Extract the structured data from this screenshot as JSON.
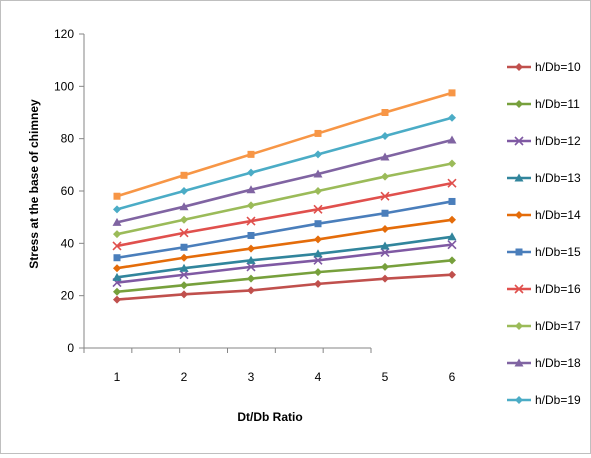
{
  "chart_data": {
    "type": "line",
    "title": "",
    "xlabel": "Dt/Db Ratio",
    "ylabel": "Stress at the base of chimney",
    "x": [
      1,
      2,
      3,
      4,
      5,
      6
    ],
    "ylim": [
      0,
      120
    ],
    "yticks": [
      0,
      20,
      40,
      60,
      80,
      100,
      120
    ],
    "grid": false,
    "legend_position": "right",
    "series": [
      {
        "name": "h/Db=10",
        "color": "#c0504d",
        "marker": "diamond",
        "values": [
          18.5,
          20.5,
          22,
          24.5,
          26.5,
          28
        ]
      },
      {
        "name": "h/Db=11",
        "color": "#77a03c",
        "marker": "diamond",
        "values": [
          21.5,
          24,
          26.5,
          29,
          31,
          33.5
        ]
      },
      {
        "name": "h/Db=12",
        "color": "#7f59a3",
        "marker": "x",
        "values": [
          25,
          28,
          31,
          33.5,
          36.5,
          39.5
        ]
      },
      {
        "name": "h/Db=13",
        "color": "#31859c",
        "marker": "triangle",
        "values": [
          27,
          30.5,
          33.5,
          36,
          39,
          42.5
        ]
      },
      {
        "name": "h/Db=14",
        "color": "#e46c0a",
        "marker": "diamond",
        "values": [
          30.5,
          34.5,
          38,
          41.5,
          45.5,
          49
        ]
      },
      {
        "name": "h/Db=15",
        "color": "#4a7ebb",
        "marker": "square",
        "values": [
          34.5,
          38.5,
          43,
          47.5,
          51.5,
          56
        ]
      },
      {
        "name": "h/Db=16",
        "color": "#e0504d",
        "marker": "x",
        "values": [
          39,
          44,
          48.5,
          53,
          58,
          63
        ]
      },
      {
        "name": "h/Db=17",
        "color": "#9bbb59",
        "marker": "diamond",
        "values": [
          43.5,
          49,
          54.5,
          60,
          65.5,
          70.5
        ]
      },
      {
        "name": "h/Db=18",
        "color": "#8064a2",
        "marker": "triangle",
        "values": [
          48,
          54,
          60.5,
          66.5,
          73,
          79.5
        ]
      },
      {
        "name": "h/Db=19",
        "color": "#4bacc6",
        "marker": "diamond",
        "values": [
          53,
          60,
          67,
          74,
          81,
          88
        ]
      },
      {
        "name": "",
        "color": "#f79646",
        "marker": "square",
        "values": [
          58,
          66,
          74,
          82,
          90,
          97.5
        ]
      }
    ]
  }
}
